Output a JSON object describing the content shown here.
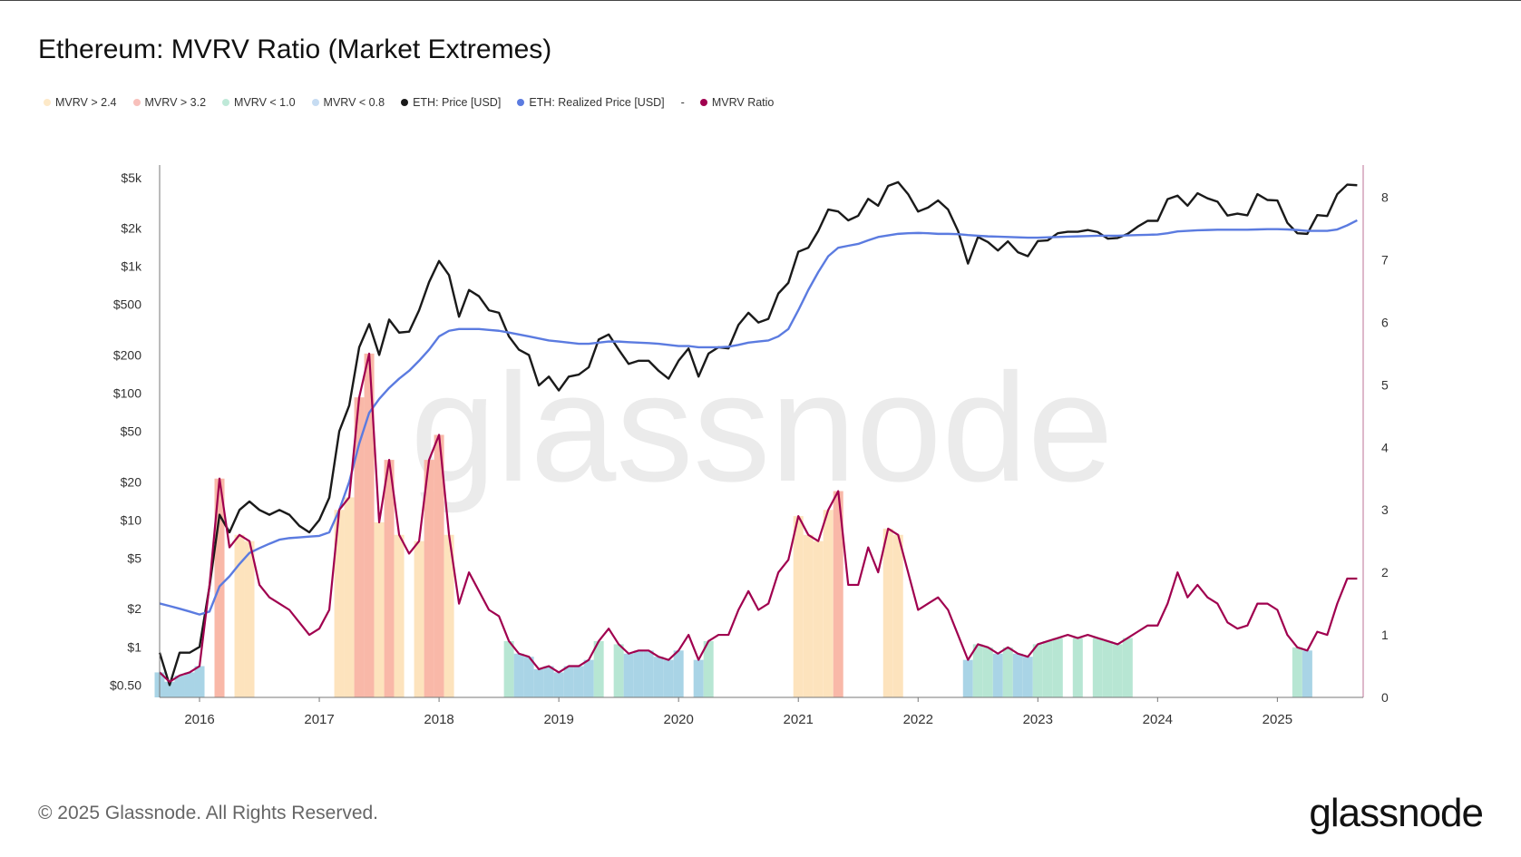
{
  "title": "Ethereum: MVRV Ratio (Market Extremes)",
  "footer": "© 2025 Glassnode. All Rights Reserved.",
  "logo": "glassnode",
  "watermark": "glassnode",
  "legend": [
    {
      "label": "MVRV > 2.4",
      "color": "#fde9c8"
    },
    {
      "label": "MVRV > 3.2",
      "color": "#f8c0bb"
    },
    {
      "label": "MVRV < 1.0",
      "color": "#bfe9d8"
    },
    {
      "label": "MVRV < 0.8",
      "color": "#c6dcf2"
    },
    {
      "label": "ETH: Price [USD]",
      "color": "#1a1a1a"
    },
    {
      "label": "ETH: Realized Price [USD]",
      "color": "#5b7be0"
    },
    {
      "label": "MVRV Ratio",
      "color": "#a0004f",
      "prefix": "-"
    }
  ],
  "chart_data": {
    "type": "line",
    "title": "Ethereum: MVRV Ratio (Market Extremes)",
    "y_left": {
      "scale": "log",
      "range": [
        0.4,
        5500
      ],
      "ticks": [
        5000,
        2000,
        1000,
        500,
        200,
        100,
        50,
        20,
        10,
        5,
        2,
        1,
        0.5
      ],
      "tick_labels": [
        "$5k",
        "$2k",
        "$1k",
        "$500",
        "$200",
        "$100",
        "$50",
        "$20",
        "$10",
        "$5",
        "$2",
        "$1",
        "$0.50"
      ]
    },
    "y_right": {
      "scale": "linear",
      "range": [
        0,
        8.4
      ],
      "ticks": [
        0,
        1,
        2,
        3,
        4,
        5,
        6,
        7,
        8
      ],
      "tick_labels": [
        "0",
        "1",
        "2",
        "3",
        "4",
        "5",
        "6",
        "7",
        "8"
      ]
    },
    "x_ticks": [
      "2016",
      "2017",
      "2018",
      "2019",
      "2020",
      "2021",
      "2022",
      "2023",
      "2024",
      "2025"
    ],
    "x_range": [
      "2015-09",
      "2025-09"
    ],
    "grid": false,
    "legend_placement": "top-left",
    "bands": [
      {
        "name": "MVRV > 2.4",
        "condition": ">",
        "threshold": 2.4,
        "color": "#fde3bd"
      },
      {
        "name": "MVRV > 3.2",
        "condition": ">",
        "threshold": 3.2,
        "color": "#f9b8a8"
      },
      {
        "name": "MVRV < 1.0",
        "condition": "<",
        "threshold": 1.0,
        "color": "#b7e6d3"
      },
      {
        "name": "MVRV < 0.8",
        "condition": "<",
        "threshold": 0.8,
        "color": "#a9d4e6"
      }
    ],
    "dates": [
      "2015-09",
      "2015-10",
      "2015-11",
      "2015-12",
      "2016-01",
      "2016-02",
      "2016-03",
      "2016-04",
      "2016-05",
      "2016-06",
      "2016-07",
      "2016-08",
      "2016-09",
      "2016-10",
      "2016-11",
      "2016-12",
      "2017-01",
      "2017-02",
      "2017-03",
      "2017-04",
      "2017-05",
      "2017-06",
      "2017-07",
      "2017-08",
      "2017-09",
      "2017-10",
      "2017-11",
      "2017-12",
      "2018-01",
      "2018-02",
      "2018-03",
      "2018-04",
      "2018-05",
      "2018-06",
      "2018-07",
      "2018-08",
      "2018-09",
      "2018-10",
      "2018-11",
      "2018-12",
      "2019-01",
      "2019-02",
      "2019-03",
      "2019-04",
      "2019-05",
      "2019-06",
      "2019-07",
      "2019-08",
      "2019-09",
      "2019-10",
      "2019-11",
      "2019-12",
      "2020-01",
      "2020-02",
      "2020-03",
      "2020-04",
      "2020-05",
      "2020-06",
      "2020-07",
      "2020-08",
      "2020-09",
      "2020-10",
      "2020-11",
      "2020-12",
      "2021-01",
      "2021-02",
      "2021-03",
      "2021-04",
      "2021-05",
      "2021-06",
      "2021-07",
      "2021-08",
      "2021-09",
      "2021-10",
      "2021-11",
      "2021-12",
      "2022-01",
      "2022-02",
      "2022-03",
      "2022-04",
      "2022-05",
      "2022-06",
      "2022-07",
      "2022-08",
      "2022-09",
      "2022-10",
      "2022-11",
      "2022-12",
      "2023-01",
      "2023-02",
      "2023-03",
      "2023-04",
      "2023-05",
      "2023-06",
      "2023-07",
      "2023-08",
      "2023-09",
      "2023-10",
      "2023-11",
      "2023-12",
      "2024-01",
      "2024-02",
      "2024-03",
      "2024-04",
      "2024-05",
      "2024-06",
      "2024-07",
      "2024-08",
      "2024-09",
      "2024-10",
      "2024-11",
      "2024-12",
      "2025-01",
      "2025-02",
      "2025-03",
      "2025-04",
      "2025-05",
      "2025-06",
      "2025-07",
      "2025-08",
      "2025-09"
    ],
    "series": [
      {
        "name": "ETH: Price [USD]",
        "axis": "left",
        "color": "#1a1a1a",
        "values": [
          0.9,
          0.5,
          0.9,
          0.9,
          1.0,
          3,
          11,
          8,
          12,
          14,
          12,
          11,
          12,
          11,
          9,
          8,
          10,
          15,
          50,
          80,
          230,
          350,
          200,
          380,
          300,
          305,
          450,
          750,
          1100,
          850,
          400,
          650,
          580,
          450,
          430,
          280,
          220,
          200,
          115,
          135,
          105,
          135,
          140,
          160,
          265,
          290,
          220,
          170,
          180,
          180,
          150,
          130,
          180,
          225,
          135,
          205,
          230,
          225,
          345,
          430,
          360,
          385,
          610,
          740,
          1300,
          1400,
          1900,
          2800,
          2700,
          2300,
          2500,
          3400,
          3000,
          4300,
          4600,
          3700,
          2700,
          2900,
          3300,
          2800,
          1900,
          1050,
          1700,
          1550,
          1330,
          1570,
          1290,
          1200,
          1580,
          1600,
          1820,
          1870,
          1870,
          1930,
          1860,
          1650,
          1670,
          1800,
          2050,
          2280,
          2280,
          3380,
          3600,
          3000,
          3760,
          3430,
          3230,
          2510,
          2600,
          2520,
          3700,
          3330,
          3300,
          2200,
          1820,
          1800,
          2530,
          2490,
          3700,
          4400,
          4350
        ]
      },
      {
        "name": "ETH: Realized Price [USD]",
        "axis": "left",
        "color": "#5b7be0",
        "values": [
          2.2,
          2.1,
          2.0,
          1.9,
          1.8,
          1.9,
          3,
          3.6,
          4.5,
          5.5,
          6,
          6.5,
          7,
          7.2,
          7.3,
          7.4,
          7.5,
          8,
          12,
          20,
          40,
          70,
          90,
          110,
          130,
          150,
          180,
          220,
          280,
          310,
          320,
          320,
          320,
          315,
          310,
          300,
          290,
          280,
          270,
          260,
          255,
          250,
          245,
          245,
          250,
          255,
          255,
          252,
          250,
          248,
          245,
          240,
          235,
          235,
          230,
          230,
          230,
          232,
          240,
          250,
          255,
          260,
          280,
          320,
          450,
          650,
          900,
          1200,
          1400,
          1450,
          1500,
          1600,
          1700,
          1750,
          1800,
          1820,
          1830,
          1820,
          1800,
          1800,
          1790,
          1760,
          1740,
          1720,
          1710,
          1700,
          1690,
          1680,
          1680,
          1690,
          1700,
          1710,
          1720,
          1730,
          1740,
          1740,
          1740,
          1750,
          1760,
          1770,
          1780,
          1820,
          1880,
          1900,
          1920,
          1930,
          1940,
          1940,
          1940,
          1940,
          1950,
          1960,
          1960,
          1950,
          1930,
          1900,
          1900,
          1900,
          1950,
          2100,
          2300
        ]
      },
      {
        "name": "MVRV Ratio",
        "axis": "right",
        "color": "#a0004f",
        "values": [
          0.4,
          0.25,
          0.35,
          0.4,
          0.5,
          1.8,
          3.5,
          2.4,
          2.6,
          2.5,
          1.8,
          1.6,
          1.5,
          1.4,
          1.2,
          1.0,
          1.1,
          1.4,
          3.0,
          3.2,
          4.8,
          5.5,
          2.8,
          3.8,
          2.6,
          2.3,
          2.5,
          3.8,
          4.2,
          2.6,
          1.5,
          2.0,
          1.7,
          1.4,
          1.3,
          0.9,
          0.7,
          0.65,
          0.45,
          0.5,
          0.4,
          0.5,
          0.5,
          0.6,
          0.9,
          1.1,
          0.85,
          0.7,
          0.75,
          0.75,
          0.65,
          0.6,
          0.75,
          1.0,
          0.6,
          0.9,
          1.0,
          1.0,
          1.4,
          1.7,
          1.4,
          1.5,
          2.0,
          2.2,
          2.9,
          2.6,
          2.5,
          3.0,
          3.3,
          1.8,
          1.8,
          2.4,
          2.0,
          2.7,
          2.6,
          2.0,
          1.4,
          1.5,
          1.6,
          1.4,
          1.0,
          0.6,
          0.85,
          0.8,
          0.7,
          0.8,
          0.7,
          0.65,
          0.85,
          0.9,
          0.95,
          1.0,
          0.95,
          1.0,
          0.95,
          0.9,
          0.85,
          0.95,
          1.05,
          1.15,
          1.15,
          1.5,
          2.0,
          1.6,
          1.8,
          1.6,
          1.5,
          1.2,
          1.1,
          1.15,
          1.5,
          1.5,
          1.4,
          1.0,
          0.8,
          0.75,
          1.05,
          1.0,
          1.5,
          1.9,
          1.9
        ]
      }
    ]
  }
}
